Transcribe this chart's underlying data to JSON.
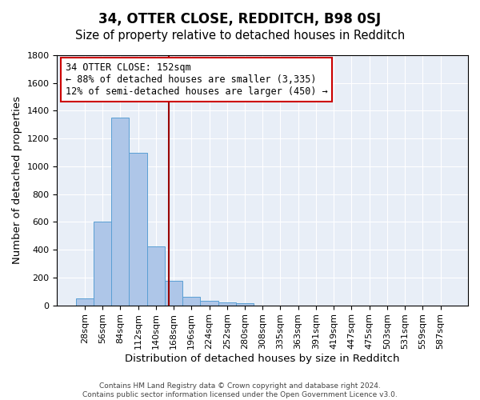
{
  "title": "34, OTTER CLOSE, REDDITCH, B98 0SJ",
  "subtitle": "Size of property relative to detached houses in Redditch",
  "xlabel": "Distribution of detached houses by size in Redditch",
  "ylabel": "Number of detached properties",
  "footnote": "Contains HM Land Registry data © Crown copyright and database right 2024.\nContains public sector information licensed under the Open Government Licence v3.0.",
  "bin_labels": [
    "28sqm",
    "56sqm",
    "84sqm",
    "112sqm",
    "140sqm",
    "168sqm",
    "196sqm",
    "224sqm",
    "252sqm",
    "280sqm",
    "308sqm",
    "335sqm",
    "363sqm",
    "391sqm",
    "419sqm",
    "447sqm",
    "475sqm",
    "503sqm",
    "531sqm",
    "559sqm",
    "587sqm"
  ],
  "bar_values": [
    50,
    600,
    1350,
    1100,
    425,
    175,
    60,
    35,
    20,
    15,
    0,
    0,
    0,
    0,
    0,
    0,
    0,
    0,
    0,
    0,
    0
  ],
  "bar_color": "#aec6e8",
  "bar_edge_color": "#5a9fd4",
  "vline_x": 4.72,
  "vline_color": "#990000",
  "ylim": [
    0,
    1800
  ],
  "yticks": [
    0,
    200,
    400,
    600,
    800,
    1000,
    1200,
    1400,
    1600,
    1800
  ],
  "annotation_text": "34 OTTER CLOSE: 152sqm\n← 88% of detached houses are smaller (3,335)\n12% of semi-detached houses are larger (450) →",
  "annotation_box_color": "#ffffff",
  "annotation_box_edge": "#cc0000",
  "bg_color": "#e8eef7",
  "title_fontsize": 12,
  "subtitle_fontsize": 10.5,
  "tick_fontsize": 8,
  "axis_label_fontsize": 9.5
}
